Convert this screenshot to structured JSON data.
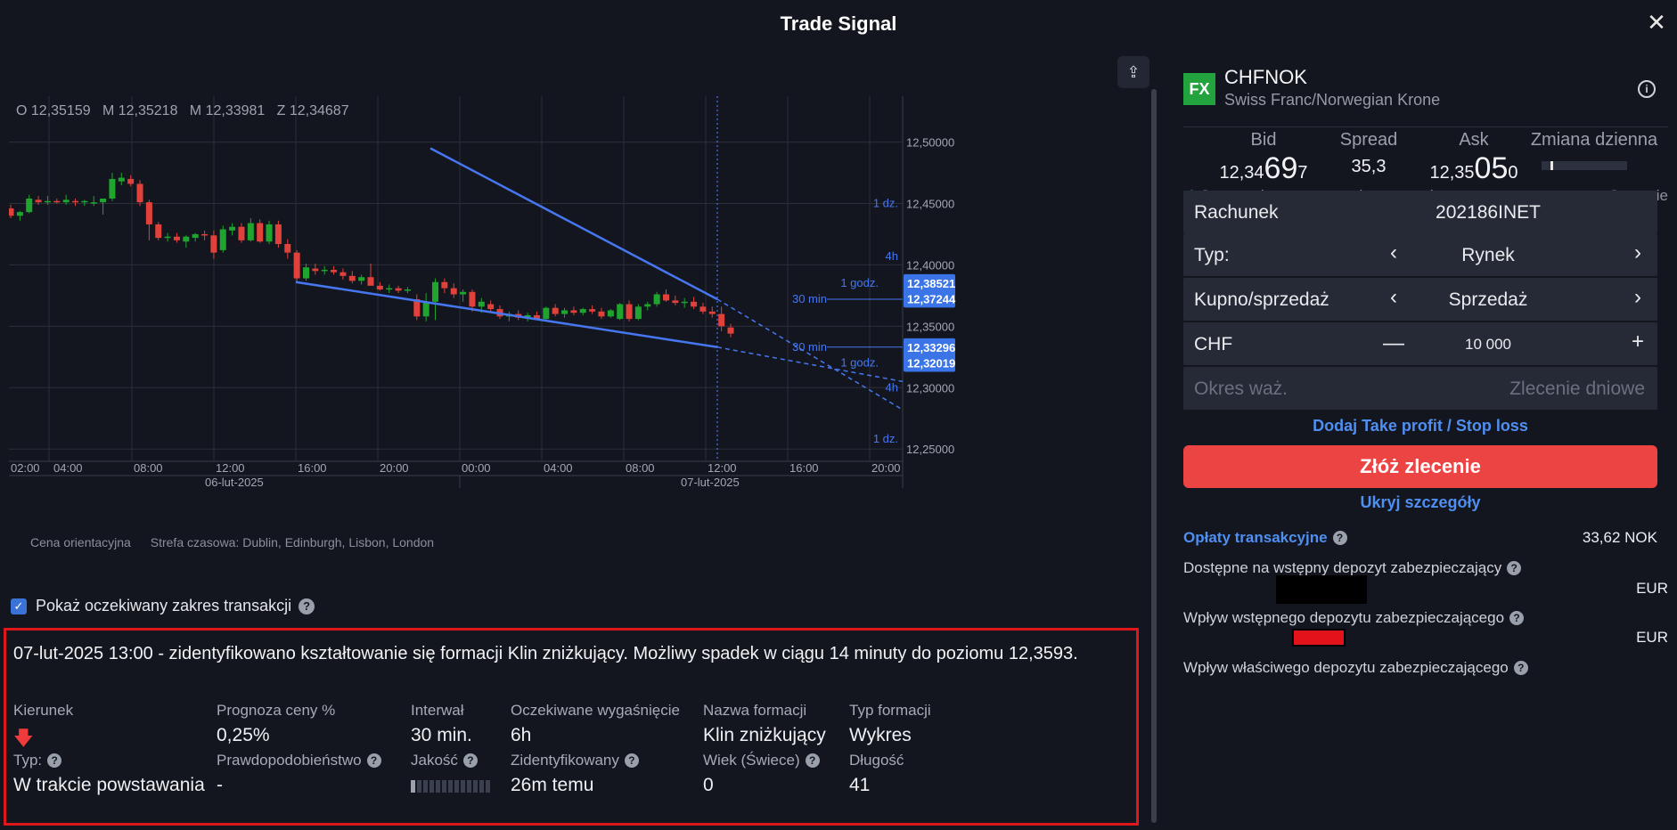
{
  "window": {
    "title": "Trade Signal"
  },
  "chart": {
    "ohlc": "O 12,35159   M 12,35218   M 12,33981   Z 12,34687",
    "price_ticks": [
      "12,50000",
      "12,45000",
      "12,40000",
      "12,35000",
      "12,30000",
      "12,25000"
    ],
    "time_ticks": [
      "02:00",
      "04:00",
      "08:00",
      "12:00",
      "16:00",
      "20:00",
      "00:00",
      "04:00",
      "08:00",
      "12:00",
      "16:00",
      "20:00"
    ],
    "date_ticks": [
      "06-lut-2025",
      "07-lut-2025"
    ],
    "indicative_price_label": "Cena orientacyjna",
    "timezone_label": "Strefa czasowa: Dublin, Edinburgh, Lisbon, London",
    "range_labels_upper": [
      "1 dz.",
      "4h",
      "1 godz.",
      "30 min"
    ],
    "range_labels_lower": [
      "30 min",
      "1 godz.",
      "4h",
      "1 dz."
    ],
    "price_tags": [
      {
        "label": "12,38521",
        "price": 12.38521
      },
      {
        "label": "12,37244",
        "price": 12.37244
      },
      {
        "label": "12,33296",
        "price": 12.33296
      },
      {
        "label": "12,32019",
        "price": 12.32019
      }
    ],
    "ylim": [
      12.24,
      12.52
    ],
    "colors": {
      "up": "#1fa52e",
      "down": "#e0413a",
      "pattern": "#4677f0",
      "tag": "#3a74e6"
    }
  },
  "toggle": {
    "label": "Pokaż oczekiwany zakres transakcji",
    "checked": true
  },
  "signal": {
    "text": "07-lut-2025 13:00 - zidentyfikowano kształtowanie się formacji Klin zniżkujący. Możliwy spadek w ciągu 14 minuty do poziomu 12,3593.",
    "direction_label": "Kierunek",
    "forecast_label": "Prognoza ceny %",
    "forecast_value": "0,25%",
    "interval_label": "Interwał",
    "interval_value": "30 min.",
    "expiry_label": "Oczekiwane wygaśnięcie",
    "expiry_value": "6h",
    "pattern_name_label": "Nazwa formacji",
    "pattern_name_value": "Klin zniżkujący",
    "pattern_type_label": "Typ formacji",
    "pattern_type_value": "Wykres",
    "type_label": "Typ:",
    "type_value": "W trakcie powstawania",
    "probability_label": "Prawdopodobieństwo",
    "probability_value": "-",
    "quality_label": "Jakość",
    "quality_level": 0.1,
    "identified_label": "Zidentyfikowany",
    "identified_value": "26m temu",
    "age_label": "Wiek (Świece)",
    "age_value": "0",
    "length_label": "Długość",
    "length_value": "41"
  },
  "instrument": {
    "badge": "FX",
    "symbol": "CHFNOK",
    "description": "Swiss Franc/Norwegian Krone",
    "bid_label": "Bid",
    "bid_small": "12,34",
    "bid_big": "69",
    "bid_last": "7",
    "spread_label": "Spread",
    "spread_value": "35,3",
    "ask_label": "Ask",
    "ask_small": "12,35",
    "ask_big": "05",
    "ask_last": "0",
    "daily_change_label": "Zmiana dzienna",
    "realtime_label": "Ceny podawane w czasie rzeczywistym",
    "market_status": "Otwarcie"
  },
  "order": {
    "account_label": "Rachunek",
    "account_value": "202186INET",
    "type_label": "Typ:",
    "type_value": "Rynek",
    "side_label": "Kupno/sprzedaż",
    "side_value": "Sprzedaż",
    "currency_label": "CHF",
    "amount_value": "10 000",
    "validity_label": "Okres waż.",
    "validity_value": "Zlecenie dniowe",
    "tp_sl_link": "Dodaj Take profit / Stop loss",
    "submit_label": "Złóż zlecenie",
    "hide_details_link": "Ukryj szczegóły",
    "fees_label": "Opłaty transakcyjne",
    "fees_value": "33,62 NOK",
    "available_margin_label": "Dostępne na wstępny depozyt zabezpieczający",
    "available_margin_currency": "EUR",
    "initial_margin_impact_label": "Wpływ wstępnego depozytu zabezpieczającego",
    "initial_margin_currency": "EUR",
    "maintenance_margin_label": "Wpływ właściwego depozytu zabezpieczającego"
  }
}
